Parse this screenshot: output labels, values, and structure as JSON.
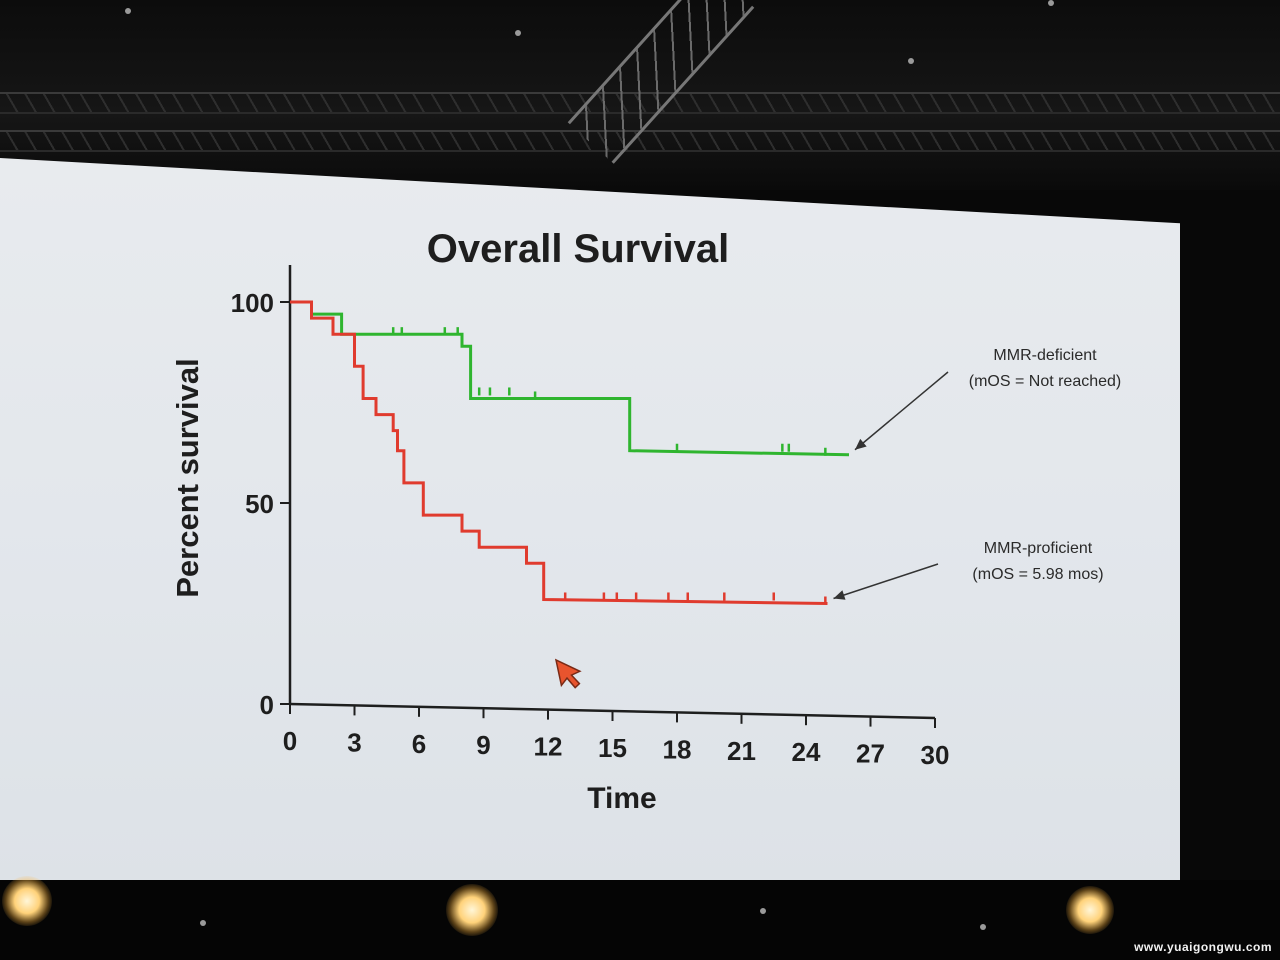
{
  "watermark": "www.yuaigongwu.com",
  "chart_data": {
    "type": "line",
    "title": "Overall Survival",
    "xlabel": "Time",
    "ylabel": "Percent survival",
    "xlim": [
      0,
      30
    ],
    "ylim": [
      0,
      100
    ],
    "x_ticks": [
      "0",
      "3",
      "6",
      "9",
      "12",
      "15",
      "18",
      "21",
      "24",
      "27",
      "30"
    ],
    "y_ticks": [
      "0",
      "50",
      "100"
    ],
    "series": [
      {
        "name": "MMR-deficient",
        "color": "#2fb52f",
        "step": true,
        "points": [
          [
            0,
            100
          ],
          [
            1,
            100
          ],
          [
            1,
            97
          ],
          [
            2.4,
            97
          ],
          [
            2.4,
            92
          ],
          [
            8,
            92
          ],
          [
            8,
            89
          ],
          [
            8.4,
            89
          ],
          [
            8.4,
            76
          ],
          [
            15.8,
            76
          ],
          [
            15.8,
            63
          ],
          [
            26,
            62
          ]
        ],
        "censored": [
          [
            4.8,
            92
          ],
          [
            5.2,
            92
          ],
          [
            7.2,
            92
          ],
          [
            7.8,
            92
          ],
          [
            8.8,
            77
          ],
          [
            9.3,
            77
          ],
          [
            10.2,
            77
          ],
          [
            11.4,
            76
          ],
          [
            18,
            63
          ],
          [
            22.9,
            63
          ],
          [
            23.2,
            63
          ],
          [
            24.9,
            62
          ]
        ]
      },
      {
        "name": "MMR-proficient",
        "color": "#e03b2e",
        "step": true,
        "points": [
          [
            0,
            100
          ],
          [
            1,
            100
          ],
          [
            1,
            96
          ],
          [
            2,
            96
          ],
          [
            2,
            92
          ],
          [
            3,
            92
          ],
          [
            3,
            84
          ],
          [
            3.4,
            84
          ],
          [
            3.4,
            76
          ],
          [
            4,
            76
          ],
          [
            4,
            72
          ],
          [
            4.8,
            72
          ],
          [
            4.8,
            68
          ],
          [
            5,
            68
          ],
          [
            5,
            63
          ],
          [
            5.3,
            63
          ],
          [
            5.3,
            55
          ],
          [
            6.2,
            55
          ],
          [
            6.2,
            47
          ],
          [
            8,
            47
          ],
          [
            8,
            43
          ],
          [
            8.8,
            43
          ],
          [
            8.8,
            39
          ],
          [
            11,
            39
          ],
          [
            11,
            35
          ],
          [
            11.8,
            35
          ],
          [
            11.8,
            26
          ],
          [
            25,
            25
          ]
        ],
        "censored": [
          [
            12.8,
            26
          ],
          [
            14.6,
            26
          ],
          [
            15.2,
            26
          ],
          [
            16.1,
            26
          ],
          [
            17.6,
            26
          ],
          [
            18.5,
            26
          ],
          [
            20.2,
            26
          ],
          [
            22.5,
            26
          ],
          [
            24.9,
            25
          ]
        ]
      }
    ],
    "annotations": [
      {
        "lines": [
          "MMR-deficient",
          "(mOS = Not reached)"
        ],
        "series": "MMR-deficient"
      },
      {
        "lines": [
          "MMR-proficient",
          "(mOS = 5.98 mos)"
        ],
        "series": "MMR-proficient"
      }
    ]
  }
}
